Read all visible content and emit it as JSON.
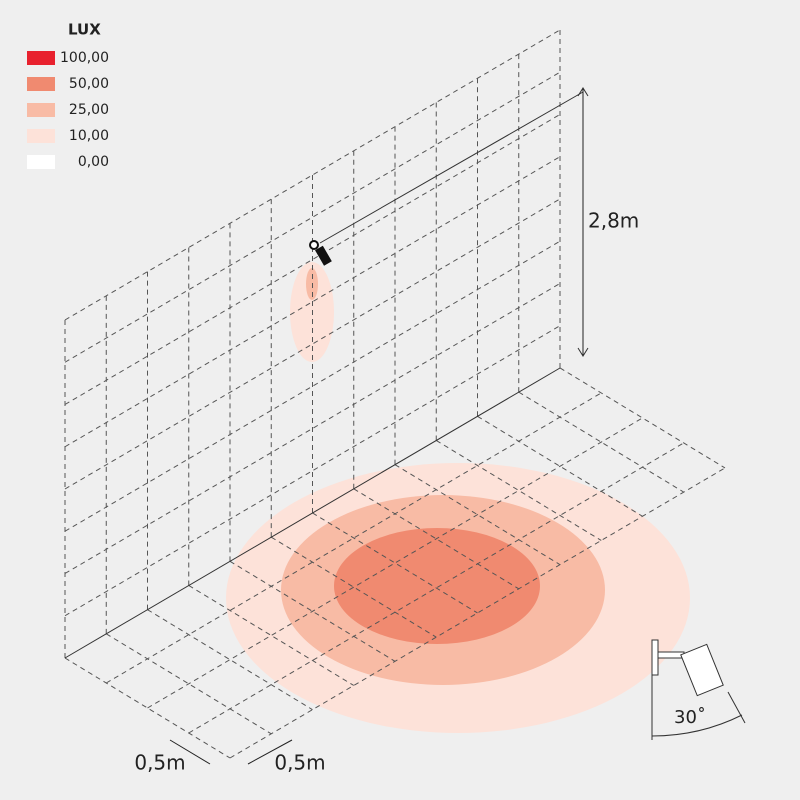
{
  "legend": {
    "title": "LUX",
    "items": [
      {
        "label": "100,00",
        "color": "#e8212e"
      },
      {
        "label": "50,00",
        "color": "#f08a70"
      },
      {
        "label": "25,00",
        "color": "#f8bba5"
      },
      {
        "label": "10,00",
        "color": "#fde2d9"
      },
      {
        "label": "0,00",
        "color": "#ffffff"
      }
    ]
  },
  "dimensions": {
    "height": "2,8m",
    "grid_depth": "0,5m",
    "grid_width": "0,5m",
    "tilt_angle": "30˚"
  }
}
